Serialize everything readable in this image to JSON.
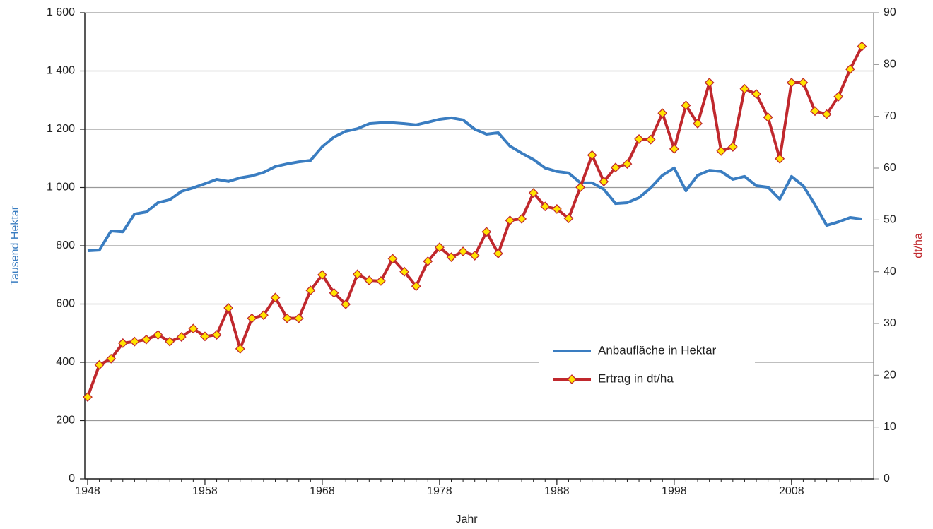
{
  "chart_data": {
    "type": "line",
    "xlabel": "Jahr",
    "ylabel": "Tausend Hektar",
    "y2label": "dt/ha",
    "x": [
      1948,
      1949,
      1950,
      1951,
      1952,
      1953,
      1954,
      1955,
      1956,
      1957,
      1958,
      1959,
      1960,
      1961,
      1962,
      1963,
      1964,
      1965,
      1966,
      1967,
      1968,
      1969,
      1970,
      1971,
      1972,
      1973,
      1974,
      1975,
      1976,
      1977,
      1978,
      1979,
      1980,
      1981,
      1982,
      1983,
      1984,
      1985,
      1986,
      1987,
      1988,
      1989,
      1990,
      1991,
      1992,
      1993,
      1994,
      1995,
      1996,
      1997,
      1998,
      1999,
      2000,
      2001,
      2002,
      2003,
      2004,
      2005,
      2006,
      2007,
      2008,
      2009,
      2010,
      2011,
      2012,
      2013,
      2014
    ],
    "series": [
      {
        "name": "Anbaufläche in Hektar",
        "color": "#3a7dc1",
        "values": [
          783,
          785,
          851,
          848,
          909,
          916,
          948,
          958,
          987,
          999,
          1013,
          1028,
          1021,
          1033,
          1040,
          1052,
          1072,
          1081,
          1088,
          1093,
          1140,
          1173,
          1193,
          1202,
          1219,
          1222,
          1222,
          1219,
          1215,
          1224,
          1234,
          1239,
          1232,
          1200,
          1183,
          1188,
          1142,
          1118,
          1096,
          1067,
          1055,
          1050,
          1016,
          1016,
          994,
          945,
          948,
          965,
          999,
          1042,
          1067,
          989,
          1042,
          1059,
          1055,
          1028,
          1038,
          1006,
          1001,
          960,
          1038,
          1006,
          941,
          870,
          882,
          897,
          892
        ]
      },
      {
        "name": "Ertrag in dt/ha",
        "color": "#c0282d",
        "marker_color": "#ffe400",
        "axis": "y2",
        "values": [
          15.8,
          22.0,
          23.2,
          26.2,
          26.5,
          26.9,
          27.8,
          26.5,
          27.4,
          29.0,
          27.5,
          27.8,
          33.0,
          25.1,
          31.0,
          31.6,
          35.0,
          31.0,
          31.0,
          36.4,
          39.4,
          35.9,
          33.7,
          39.5,
          38.3,
          38.2,
          42.5,
          40.0,
          37.2,
          42.0,
          44.7,
          42.8,
          43.9,
          43.1,
          47.7,
          43.5,
          49.9,
          50.2,
          55.2,
          52.6,
          52.1,
          50.3,
          56.3,
          62.5,
          57.4,
          60.1,
          60.8,
          65.6,
          65.5,
          70.6,
          63.7,
          72.1,
          68.6,
          76.5,
          63.3,
          64.1,
          75.3,
          74.3,
          69.8,
          61.8,
          76.5,
          76.5,
          71.0,
          70.4,
          73.8,
          79.1,
          83.5
        ]
      }
    ],
    "xlim": [
      1947.76,
      2015
    ],
    "xticks": [
      1948,
      1958,
      1968,
      1978,
      1988,
      1998,
      2008
    ],
    "ylim": [
      0,
      1600
    ],
    "yticks": [
      0,
      200,
      400,
      600,
      800,
      {
        "value": 1000,
        "label": "1 000"
      },
      {
        "value": 1200,
        "label": "1 200"
      },
      {
        "value": 1400,
        "label": "1 400"
      },
      {
        "value": 1600,
        "label": "1 600"
      }
    ],
    "y2lim": [
      0,
      90
    ],
    "y2ticks": [
      0,
      10,
      20,
      30,
      40,
      50,
      60,
      70,
      80,
      90
    ],
    "grid": true
  }
}
